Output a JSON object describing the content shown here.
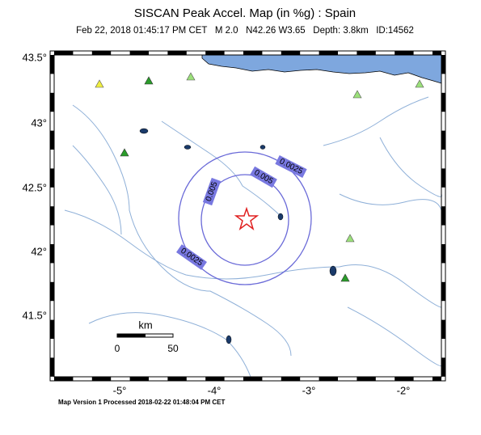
{
  "header": {
    "title": "SISCAN Peak Accel. Map (in %g) : Spain",
    "subtitle": "Feb 22, 2018 01:45:17 PM CET   M 2.0   N42.26 W3.65   Depth: 3.8km   ID:14562"
  },
  "map": {
    "lat_labels": [
      "43.5°",
      "43°",
      "42.5°",
      "42°",
      "41.5°"
    ],
    "lon_labels": [
      "-5°",
      "-4°",
      "-3°",
      "-2°"
    ],
    "contour_labels": [
      "0.0025",
      "0.005",
      "0.005",
      "0.0025"
    ],
    "scale": {
      "unit": "km",
      "start": "0",
      "end": "50"
    }
  },
  "footer": "Map Version 1 Processed 2018-02-22 01:48:04 PM CET"
}
